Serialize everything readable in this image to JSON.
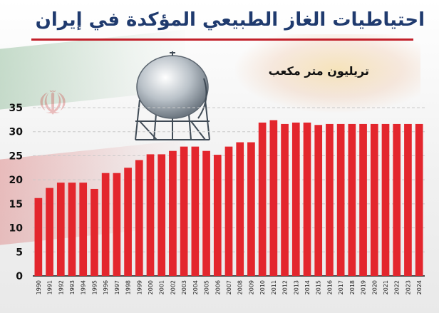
{
  "title": "احتياطيات الغاز الطبيعي المؤكدة في إيران",
  "unit_label": "تريليون متر مكعب",
  "colors": {
    "bar": "#e3262d",
    "title": "#1f3a6e",
    "rule": "#c2202a",
    "axis": "#111111"
  },
  "chart_data": {
    "type": "bar",
    "title": "احتياطيات الغاز الطبيعي المؤكدة في إيران",
    "ylabel": "تريليون متر مكعب",
    "xlabel": "",
    "ylim": [
      0,
      35
    ],
    "yticks": [
      0,
      5,
      10,
      15,
      20,
      25,
      30,
      35
    ],
    "grid": true,
    "categories": [
      "1990",
      "1991",
      "1992",
      "1993",
      "1994",
      "1995",
      "1996",
      "1997",
      "1998",
      "1999",
      "2000",
      "2001",
      "2002",
      "2003",
      "2004",
      "2005",
      "2006",
      "2007",
      "2008",
      "2009",
      "2010",
      "2011",
      "2012",
      "2013",
      "2014",
      "2015",
      "2016",
      "2017",
      "2018",
      "2019",
      "2020",
      "2021",
      "2022",
      "2023",
      "2024"
    ],
    "values": [
      16.2,
      18.3,
      19.4,
      19.4,
      19.4,
      18.1,
      21.4,
      21.4,
      22.5,
      24.1,
      25.3,
      25.3,
      26.0,
      26.9,
      26.9,
      26.0,
      25.2,
      26.9,
      27.8,
      27.8,
      31.9,
      32.4,
      31.6,
      31.9,
      31.9,
      31.4,
      31.6,
      31.6,
      31.6,
      31.6,
      31.6,
      31.6,
      31.6,
      31.6,
      31.6
    ]
  }
}
